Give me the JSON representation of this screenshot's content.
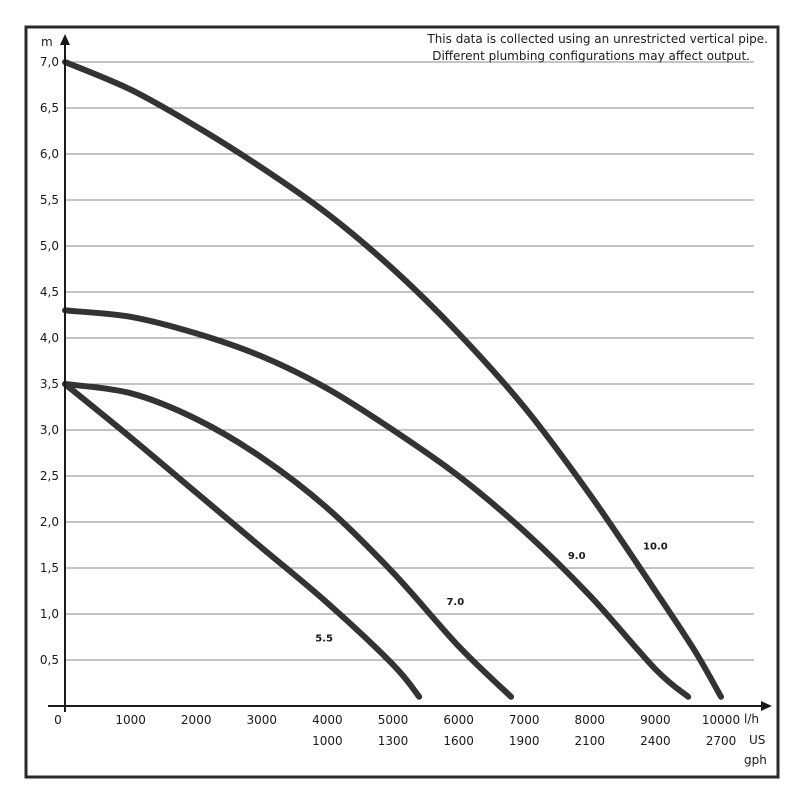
{
  "chart_data": {
    "type": "line",
    "ylabel": "m",
    "xunit_primary": "l/h",
    "xunit_secondary_1": "US",
    "xunit_secondary_2": "gph",
    "xlim": [
      0,
      11000
    ],
    "ylim": [
      0,
      7.0
    ],
    "grid": true,
    "notes": [
      "This data is collected using an unrestricted vertical pipe.",
      "Different plumbing configurations may affect output."
    ],
    "y_ticks": [
      {
        "value": 0.5,
        "label": "0,5"
      },
      {
        "value": 1.0,
        "label": "1,0"
      },
      {
        "value": 1.5,
        "label": "1,5"
      },
      {
        "value": 2.0,
        "label": "2,0"
      },
      {
        "value": 2.5,
        "label": "2,5"
      },
      {
        "value": 3.0,
        "label": "3,0"
      },
      {
        "value": 3.5,
        "label": "3,5"
      },
      {
        "value": 4.0,
        "label": "4,0"
      },
      {
        "value": 4.5,
        "label": "4,5"
      },
      {
        "value": 5.0,
        "label": "5,0"
      },
      {
        "value": 5.5,
        "label": "5,5"
      },
      {
        "value": 6.0,
        "label": "6,0"
      },
      {
        "value": 6.5,
        "label": "6,5"
      },
      {
        "value": 7.0,
        "label": "7,0"
      }
    ],
    "x_ticks": [
      {
        "value": 0,
        "label": "0",
        "label_secondary": ""
      },
      {
        "value": 1000,
        "label": "1000",
        "label_secondary": ""
      },
      {
        "value": 2000,
        "label": "2000",
        "label_secondary": ""
      },
      {
        "value": 3000,
        "label": "3000",
        "label_secondary": ""
      },
      {
        "value": 4000,
        "label": "4000",
        "label_secondary": "1000"
      },
      {
        "value": 5000,
        "label": "5000",
        "label_secondary": "1300"
      },
      {
        "value": 6000,
        "label": "6000",
        "label_secondary": "1600"
      },
      {
        "value": 7000,
        "label": "7000",
        "label_secondary": "1900"
      },
      {
        "value": 8000,
        "label": "8000",
        "label_secondary": "2100"
      },
      {
        "value": 9000,
        "label": "9000",
        "label_secondary": "2400"
      },
      {
        "value": 10000,
        "label": "10000",
        "label_secondary": "2700"
      }
    ],
    "series": [
      {
        "name": "10.0",
        "x": [
          0,
          1000,
          2000,
          3000,
          4000,
          5000,
          6000,
          7000,
          8000,
          9000,
          9600,
          10000
        ],
        "y": [
          7.0,
          6.7,
          6.3,
          5.85,
          5.35,
          4.75,
          4.05,
          3.25,
          2.3,
          1.25,
          0.6,
          0.1
        ],
        "label_x": 9000,
        "label_y": 1.7
      },
      {
        "name": "9.0",
        "x": [
          0,
          1000,
          2000,
          3000,
          4000,
          5000,
          6000,
          7000,
          8000,
          9000,
          9500
        ],
        "y": [
          4.3,
          4.23,
          4.05,
          3.8,
          3.45,
          3.0,
          2.5,
          1.9,
          1.2,
          0.4,
          0.1
        ],
        "label_x": 7800,
        "label_y": 1.6
      },
      {
        "name": "7.0",
        "x": [
          0,
          1000,
          2000,
          3000,
          4000,
          5000,
          6000,
          6800
        ],
        "y": [
          3.5,
          3.4,
          3.12,
          2.7,
          2.15,
          1.45,
          0.65,
          0.1
        ],
        "label_x": 5950,
        "label_y": 1.1
      },
      {
        "name": "5.5",
        "x": [
          0,
          1000,
          2000,
          3000,
          4000,
          5000,
          5400
        ],
        "y": [
          3.5,
          2.92,
          2.32,
          1.72,
          1.12,
          0.45,
          0.1
        ],
        "label_x": 3950,
        "label_y": 0.7
      }
    ]
  }
}
